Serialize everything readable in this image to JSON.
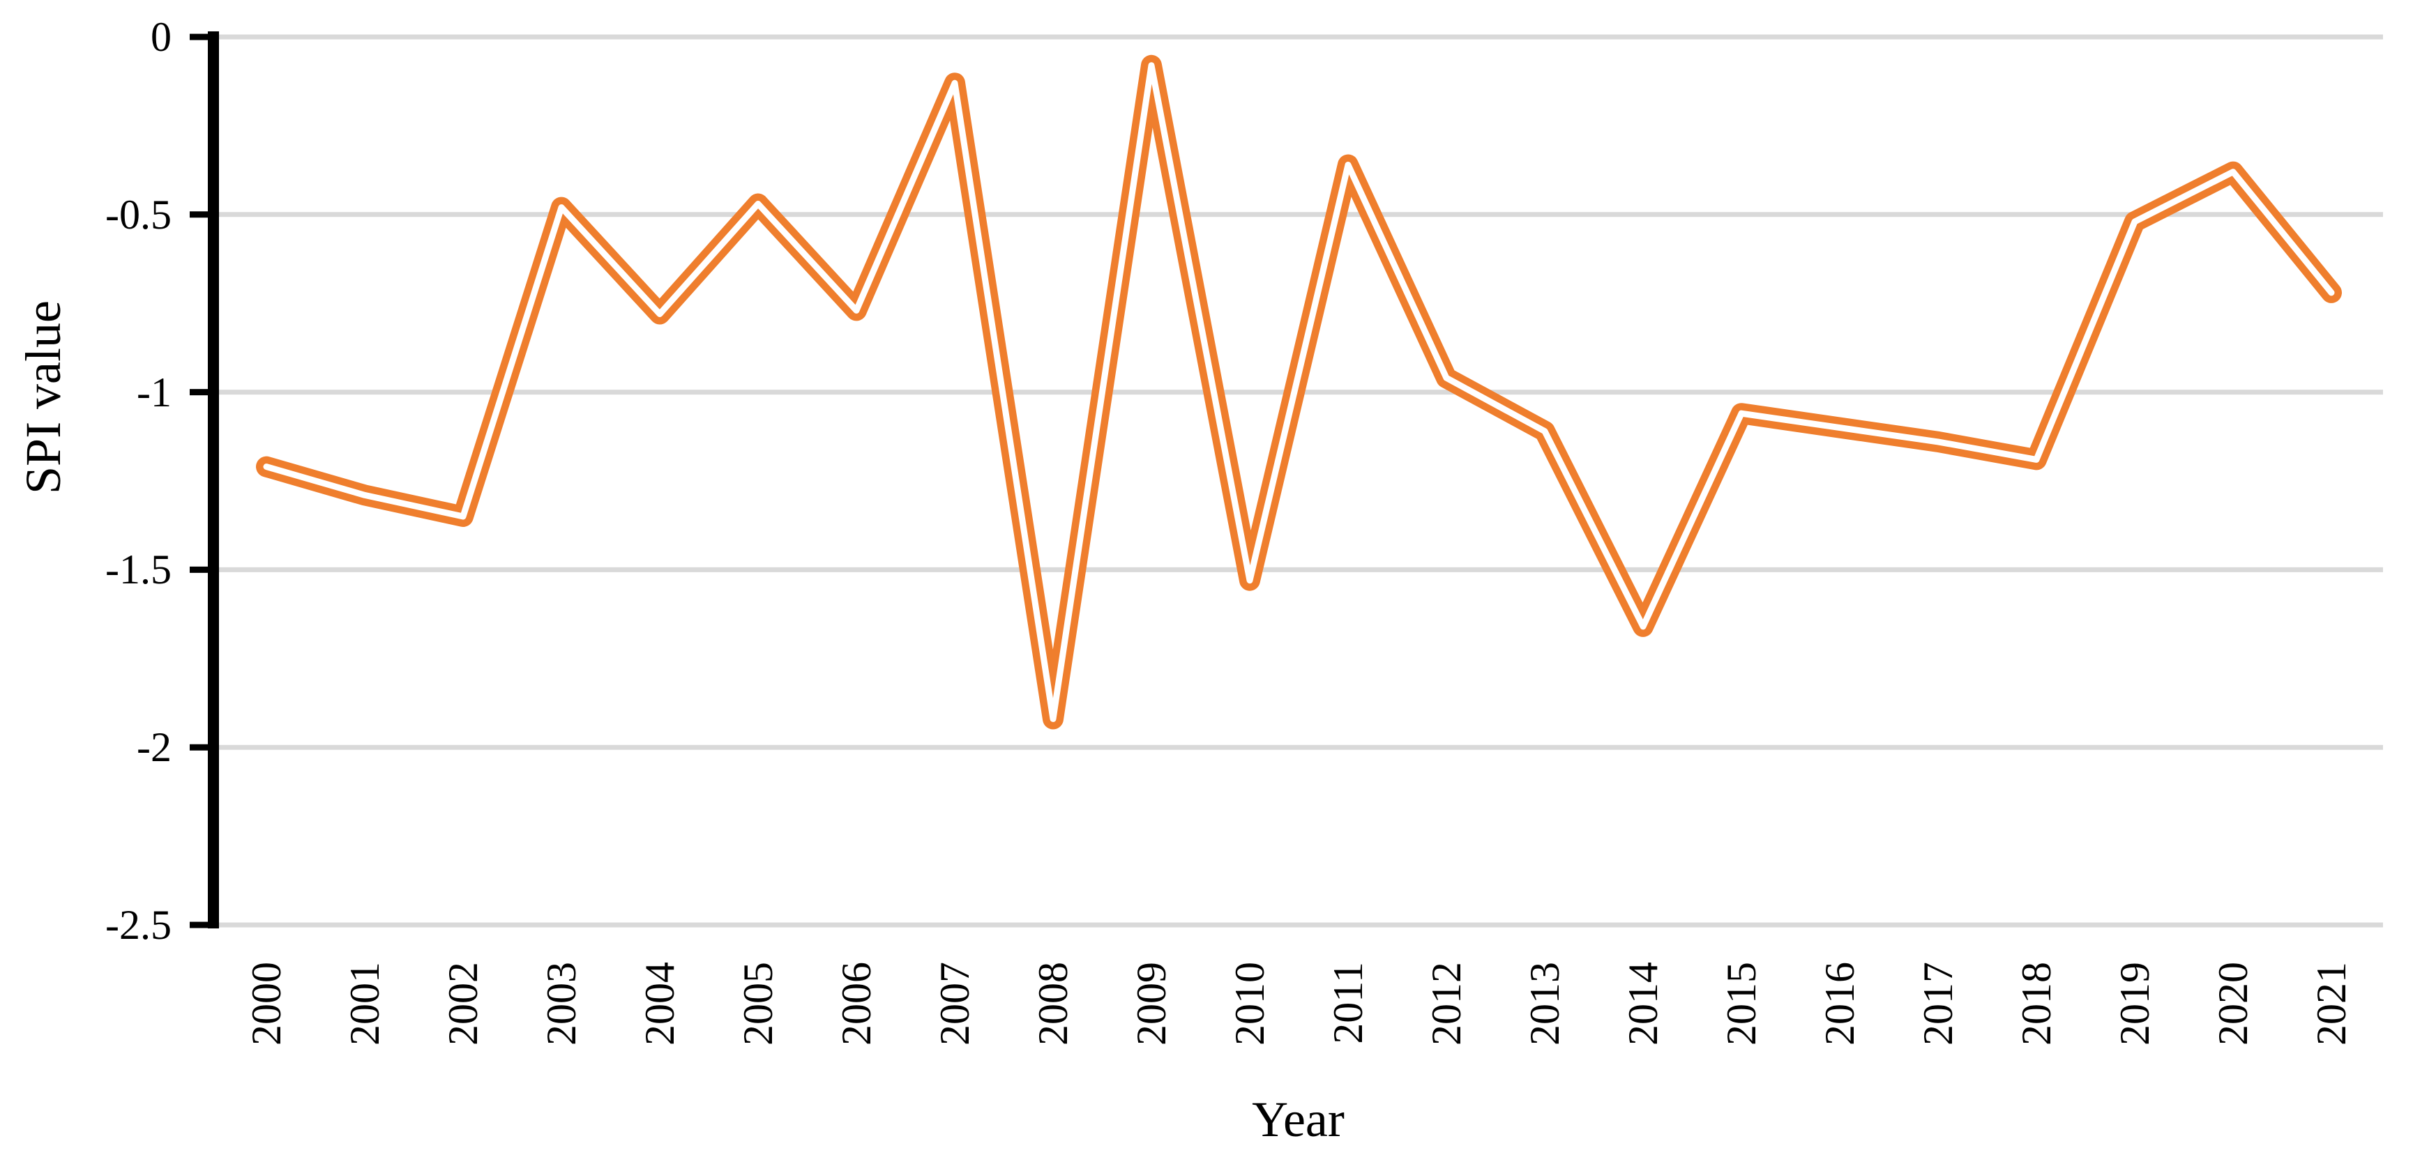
{
  "chart_data": {
    "type": "line",
    "title": "",
    "xlabel": "Year",
    "ylabel": "SPI value",
    "x": [
      "2000",
      "2001",
      "2002",
      "2003",
      "2004",
      "2005",
      "2006",
      "2007",
      "2008",
      "2009",
      "2010",
      "2011",
      "2012",
      "2013",
      "2014",
      "2015",
      "2016",
      "2017",
      "2018",
      "2019",
      "2020",
      "2021"
    ],
    "series": [
      {
        "name": "SPI value",
        "values": [
          -1.21,
          -1.29,
          -1.35,
          -0.48,
          -0.78,
          -0.47,
          -0.77,
          -0.13,
          -1.92,
          -0.08,
          -1.53,
          -0.36,
          -0.96,
          -1.11,
          -1.66,
          -1.06,
          -1.1,
          -1.14,
          -1.19,
          -0.52,
          -0.38,
          -0.72
        ]
      }
    ],
    "ylim": [
      -2.5,
      0
    ],
    "y_ticks": {
      "values": [
        0,
        -0.5,
        -1,
        -1.5,
        -2,
        -2.5
      ],
      "labels": [
        "0",
        "-0.5",
        "-1",
        "-1.5",
        "-2",
        "-2.5"
      ]
    },
    "grid": "horizontal",
    "legend": "none",
    "line_color": "#EF7E2D",
    "line_core_color": "#FFFFFF",
    "line_style": "double-line (orange outline with white core)",
    "gridline_color": "#D9D9D9",
    "axis_color": "#000000"
  }
}
